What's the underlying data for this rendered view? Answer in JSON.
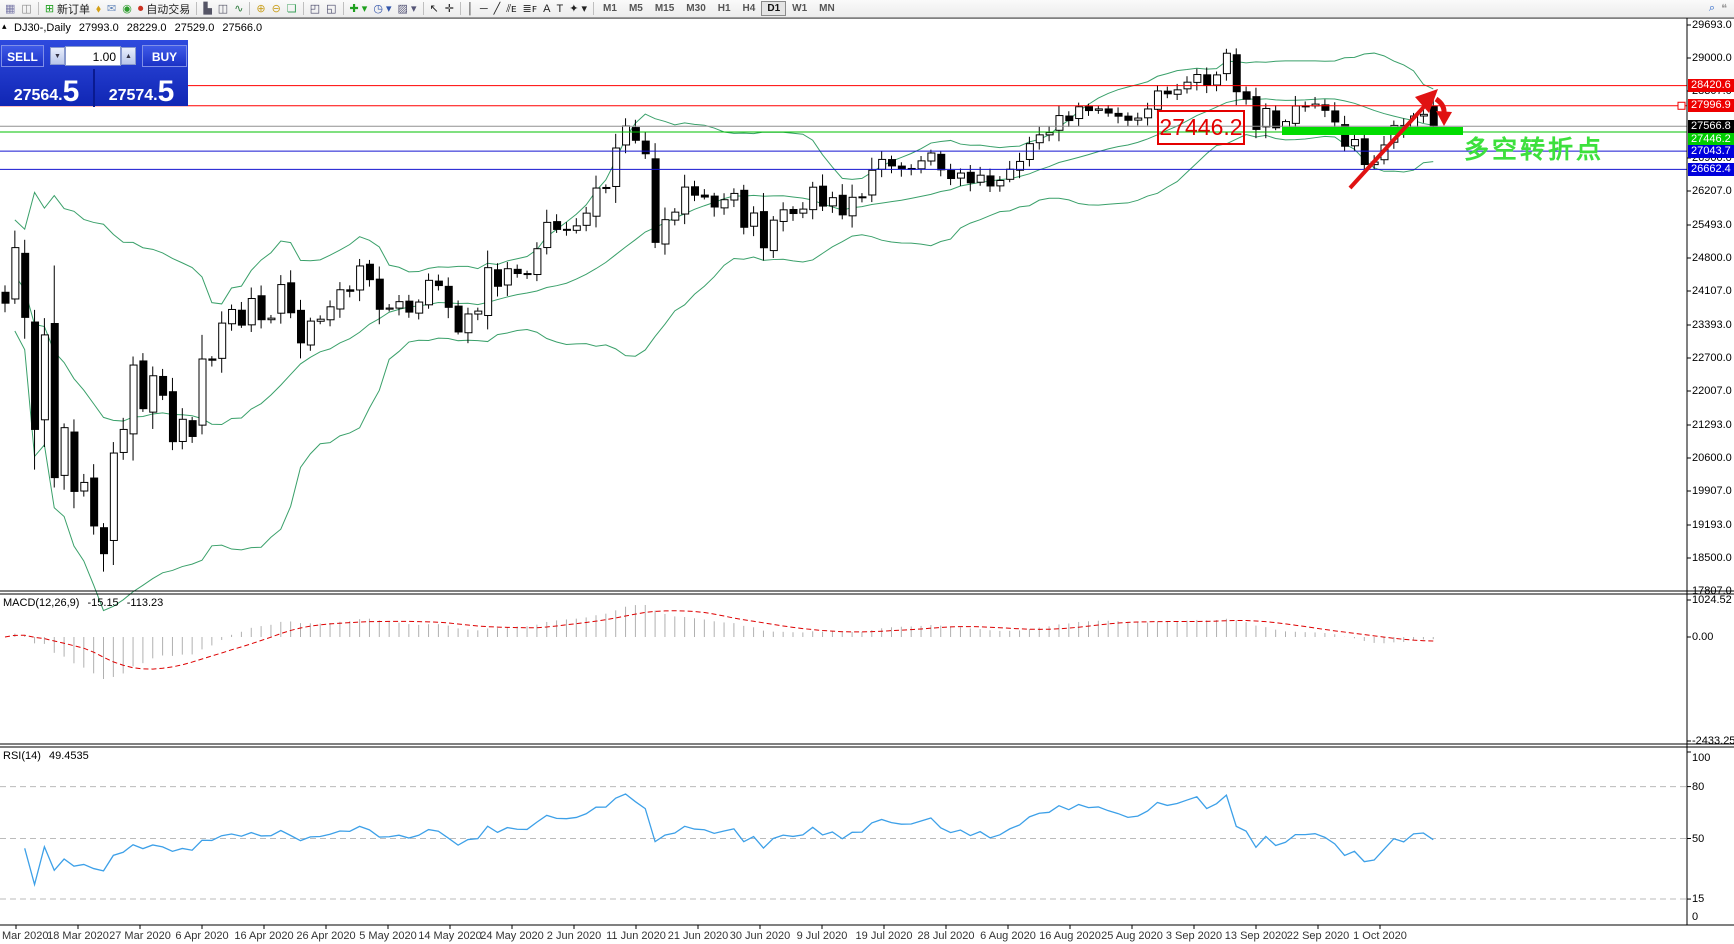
{
  "toolbar": {
    "icons": [
      {
        "n": "new-chart",
        "g": "▦",
        "c": "#7a7aa8"
      },
      {
        "n": "profiles",
        "g": "◫",
        "c": "#888888"
      },
      {
        "n": "sep1",
        "sep": true
      },
      {
        "n": "new-order",
        "g": "⊞",
        "c": "#1fa01f",
        "label": "新订单"
      },
      {
        "n": "chart-style",
        "g": "⬧",
        "c": "#d4a017"
      },
      {
        "n": "market-watch",
        "g": "✉",
        "c": "#6688bb"
      },
      {
        "n": "news-broadcast",
        "g": "◉",
        "c": "#2f9e2f"
      },
      {
        "n": "auto-trading",
        "g": "⏺",
        "c": "#cc3322",
        "label": "自动交易"
      },
      {
        "n": "sep2",
        "sep": true
      },
      {
        "n": "bar-chart",
        "g": "▙",
        "c": "#556"
      },
      {
        "n": "candle-chart",
        "g": "◫",
        "c": "#556"
      },
      {
        "n": "line-chart",
        "g": "∿",
        "c": "#2c7a3c"
      },
      {
        "n": "sep3",
        "sep": true
      },
      {
        "n": "zoom-in",
        "g": "⊕",
        "c": "#caa020"
      },
      {
        "n": "zoom-out",
        "g": "⊖",
        "c": "#caa020"
      },
      {
        "n": "tile-windows",
        "g": "❏",
        "c": "#3aa05a"
      },
      {
        "n": "sep4",
        "sep": true
      },
      {
        "n": "indicator-window-1",
        "g": "◰",
        "c": "#446"
      },
      {
        "n": "indicator-window-2",
        "g": "◱",
        "c": "#446"
      },
      {
        "n": "sep5",
        "sep": true
      },
      {
        "n": "add-indicator",
        "g": "✚ ▾",
        "c": "#1fa01f"
      },
      {
        "n": "periods",
        "g": "◷ ▾",
        "c": "#3355aa"
      },
      {
        "n": "templates",
        "g": "▨ ▾",
        "c": "#557"
      },
      {
        "n": "sep6",
        "sep": true
      },
      {
        "n": "cursor",
        "g": "↖",
        "c": "#222"
      },
      {
        "n": "crosshair",
        "g": "✛",
        "c": "#222"
      },
      {
        "n": "sep7",
        "sep": true
      },
      {
        "n": "vertical-line",
        "g": "│",
        "c": "#222"
      },
      {
        "n": "horizontal-line",
        "g": "─",
        "c": "#222"
      },
      {
        "n": "trend-line",
        "g": "╱",
        "c": "#222"
      },
      {
        "n": "equidistant-channel",
        "g": "⫽ᴇ",
        "c": "#222"
      },
      {
        "n": "fibonacci",
        "g": "≣ꜰ",
        "c": "#222"
      },
      {
        "n": "text",
        "g": "A",
        "c": "#222"
      },
      {
        "n": "text-label",
        "g": "T",
        "c": "#222"
      },
      {
        "n": "arrows",
        "g": "✦ ▾",
        "c": "#222"
      },
      {
        "n": "sep8",
        "sep": true
      }
    ],
    "timeframes": [
      "M1",
      "M5",
      "M15",
      "M30",
      "H1",
      "H4",
      "D1",
      "W1",
      "MN"
    ],
    "active_timeframe": "D1",
    "search_icon_glyph": "⌕",
    "chat_icon_glyph": "❝"
  },
  "chart": {
    "panel_toggle_glyph": "▴",
    "symbol_period": "DJ30-,Daily",
    "open": "27993.0",
    "high": "28229.0",
    "low": "27529.0",
    "close": "27566.0"
  },
  "trade_panel": {
    "sell_label": "SELL",
    "buy_label": "BUY",
    "volume": "1.00",
    "spinner_down_glyph": "▼",
    "spinner_up_glyph": "▲",
    "sell_price_main": "27564.",
    "sell_price_frac": "5",
    "buy_price_main": "27574.",
    "buy_price_frac": "5"
  },
  "chart_data": {
    "type": "candlestick",
    "symbol": "DJ30",
    "timeframe": "Daily",
    "current_bar": {
      "open": 27993.0,
      "high": 28229.0,
      "low": 27529.0,
      "close": 27566.0
    },
    "closes": [
      23851,
      25018,
      23553,
      21200,
      23185,
      20188,
      21237,
      19898,
      20087,
      19173,
      18591,
      20704,
      21200,
      22552,
      21636,
      22327,
      21917,
      20943,
      21413,
      21052,
      22679,
      22653,
      23433,
      23719,
      23390,
      23949,
      23504,
      23537,
      24242,
      23650,
      23018,
      23475,
      23515,
      23775,
      24133,
      24101,
      24633,
      24345,
      23723,
      23749,
      23883,
      23664,
      23875,
      24331,
      24221,
      23764,
      23247,
      23625,
      23685,
      24597,
      24206,
      24575,
      24474,
      24465,
      24995,
      25548,
      25400,
      25383,
      25475,
      25742,
      26269,
      26281,
      27110,
      27572,
      27272,
      26989,
      25128,
      25605,
      25763,
      26289,
      26119,
      26080,
      25871,
      26024,
      26156,
      25445,
      25745,
      25015,
      25595,
      25812,
      25734,
      25827,
      26287,
      25890,
      26067,
      25706,
      26075,
      26085,
      26642,
      26870,
      26734,
      26671,
      26680,
      26840,
      27005,
      26652,
      26469,
      26584,
      26379,
      26539,
      26313,
      26428,
      26664,
      26828,
      27201,
      27386,
      27433,
      27791,
      27686,
      27976,
      27896,
      27931,
      27844,
      27778,
      27692,
      27739,
      27930,
      28308,
      28248,
      28331,
      28492,
      28653,
      28430,
      28645,
      29100,
      28292,
      28133,
      27500,
      27940,
      27534,
      27665,
      27993,
      27995,
      28032,
      27901,
      27657,
      27147,
      27288,
      26763,
      26815,
      27174,
      27584,
      27452,
      27782,
      27817,
      27566
    ],
    "wick_low_override_index": 10,
    "wick_low_override_value": 18213,
    "wick_high_override_index": 124,
    "wick_high_override_value": 29193,
    "price_ticks": [
      "29693.0",
      "29000.0",
      "28307.0",
      "26900.0",
      "26207.0",
      "25493.0",
      "24800.0",
      "24107.0",
      "23393.0",
      "22700.0",
      "22007.0",
      "21293.0",
      "20600.0",
      "19907.0",
      "19193.0",
      "18500.0",
      "17807.0"
    ],
    "date_labels": [
      "Mar 2020",
      "18 Mar 2020",
      "27 Mar 2020",
      "6 Apr 2020",
      "16 Apr 2020",
      "26 Apr 2020",
      "5 May 2020",
      "14 May 2020",
      "24 May 2020",
      "2 Jun 2020",
      "11 Jun 2020",
      "21 Jun 2020",
      "30 Jun 2020",
      "9 Jul 2020",
      "19 Jul 2020",
      "28 Jul 2020",
      "6 Aug 2020",
      "16 Aug 2020",
      "25 Aug 2020",
      "3 Sep 2020",
      "13 Sep 2020",
      "22 Sep 2020",
      "1 Oct 2020"
    ],
    "levels": {
      "red_levels": [
        28420.6,
        27996.9
      ],
      "green_level": 27446.2,
      "blue_levels": [
        27043.7,
        26662.4
      ],
      "bid_price": 27566.8
    },
    "badges": [
      {
        "value": "28420.6",
        "bg": "#ee0000",
        "fg": "#ffffff"
      },
      {
        "value": "27996.9",
        "bg": "#ee0000",
        "fg": "#ffffff"
      },
      {
        "value": "27566.8",
        "bg": "#000000",
        "fg": "#ffffff"
      },
      {
        "value": "27446.2",
        "bg": "#00cc00",
        "fg": "#ffffff"
      },
      {
        "value": "27043.7",
        "bg": "#0000dd",
        "fg": "#ffffff"
      },
      {
        "value": "26662.4",
        "bg": "#0000dd",
        "fg": "#ffffff"
      }
    ],
    "annotations": {
      "price_box_label": "27446.2",
      "turning_point_text": "多空转折点",
      "support_bar_price": 27446.2
    },
    "bollinger": {
      "period": 20,
      "deviation": 2
    },
    "macd": {
      "label": "MACD(12,26,9)",
      "value": "-15.15",
      "signal_value": "-113.23",
      "axis_ticks": [
        "1024.52",
        "0.00",
        "-2433.25"
      ]
    },
    "rsi": {
      "label": "RSI(14)",
      "value": "49.4535",
      "period": 14,
      "axis_ticks": [
        "100",
        "80",
        "50",
        "15",
        "0"
      ],
      "level_lines": [
        80,
        50,
        15
      ]
    },
    "colors": {
      "band": "#3aa06a",
      "candle_up": "#ffffff",
      "candle_down": "#000000",
      "candle_outline": "#000000",
      "red_line": "#ff0000",
      "green_line": "#00c000",
      "blue_line": "#1515d0",
      "bid_line": "#909090",
      "support_bar": "#00dd00",
      "arrow": "#e01212",
      "macd_hist": "#b0b0b0",
      "macd_signal": "#dd0000",
      "rsi_line": "#3da0e8",
      "rsi_level": "#bbbbbb"
    }
  }
}
